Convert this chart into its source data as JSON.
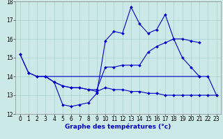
{
  "background_color": "#cce8e8",
  "line_color": "#0000cc",
  "xlim_min": -0.5,
  "xlim_max": 23.5,
  "ylim_min": 12,
  "ylim_max": 18,
  "yticks": [
    12,
    13,
    14,
    15,
    16,
    17,
    18
  ],
  "xticks": [
    0,
    1,
    2,
    3,
    4,
    5,
    6,
    7,
    8,
    9,
    10,
    11,
    12,
    13,
    14,
    15,
    16,
    17,
    18,
    19,
    20,
    21,
    22,
    23
  ],
  "xlabel": "Graphe des températures (°c)",
  "series1_x": [
    0,
    1,
    2,
    3,
    4,
    5,
    6,
    7,
    8,
    9,
    10,
    11,
    12,
    13,
    14,
    15,
    16,
    17,
    18,
    19,
    20,
    21
  ],
  "series1_y": [
    15.2,
    14.2,
    14.0,
    14.0,
    13.7,
    12.5,
    12.4,
    12.5,
    12.6,
    13.1,
    15.9,
    16.4,
    16.3,
    17.7,
    16.8,
    16.3,
    16.5,
    17.3,
    16.0,
    15.0,
    14.5,
    14.0
  ],
  "series2_x": [
    3,
    4,
    5,
    6,
    7,
    8,
    9,
    10,
    11,
    12,
    13,
    14,
    15,
    16,
    17,
    18,
    19,
    20,
    21
  ],
  "series2_y": [
    14.0,
    13.7,
    13.5,
    13.4,
    13.4,
    13.3,
    13.3,
    14.5,
    14.5,
    14.6,
    14.6,
    14.6,
    15.3,
    15.6,
    15.8,
    16.0,
    16.0,
    15.9,
    15.8
  ],
  "series3_x": [
    3,
    4,
    5,
    6,
    7,
    8,
    9,
    10,
    11,
    12,
    13,
    14,
    15,
    16,
    17,
    18,
    19,
    20,
    21,
    22,
    23
  ],
  "series3_y": [
    14.0,
    13.7,
    13.5,
    13.4,
    13.4,
    13.3,
    13.2,
    13.4,
    13.3,
    13.3,
    13.2,
    13.2,
    13.1,
    13.1,
    13.0,
    13.0,
    13.0,
    13.0,
    13.0,
    13.0,
    13.0
  ],
  "series4_x": [
    0,
    1,
    2,
    3,
    21,
    22,
    23
  ],
  "series4_y": [
    15.2,
    14.2,
    14.0,
    14.0,
    14.0,
    14.0,
    13.0
  ],
  "grid_color": "#a0c8c8",
  "tick_fontsize": 5.5,
  "label_fontsize": 6.5
}
